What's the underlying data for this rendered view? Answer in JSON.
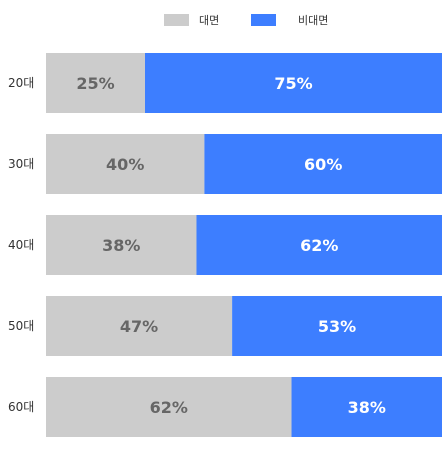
{
  "chart_data": {
    "type": "bar",
    "orientation": "horizontal",
    "stacked": true,
    "normalized_percent": true,
    "legend_position": "top",
    "categories": [
      "20대",
      "30대",
      "40대",
      "50대",
      "60대"
    ],
    "series": [
      {
        "name": "대면",
        "color": "#cccccc",
        "label_color": "#666666",
        "values": [
          25,
          40,
          38,
          47,
          62
        ]
      },
      {
        "name": "비대면",
        "color": "#3d7eff",
        "label_color": "#ffffff",
        "values": [
          75,
          60,
          62,
          53,
          38
        ]
      }
    ],
    "data_labels": [
      [
        "25%",
        "40%",
        "38%",
        "47%",
        "62%"
      ],
      [
        "75%",
        "60%",
        "62%",
        "53%",
        "38%"
      ]
    ],
    "xlim": [
      0,
      100
    ],
    "grid": false
  }
}
